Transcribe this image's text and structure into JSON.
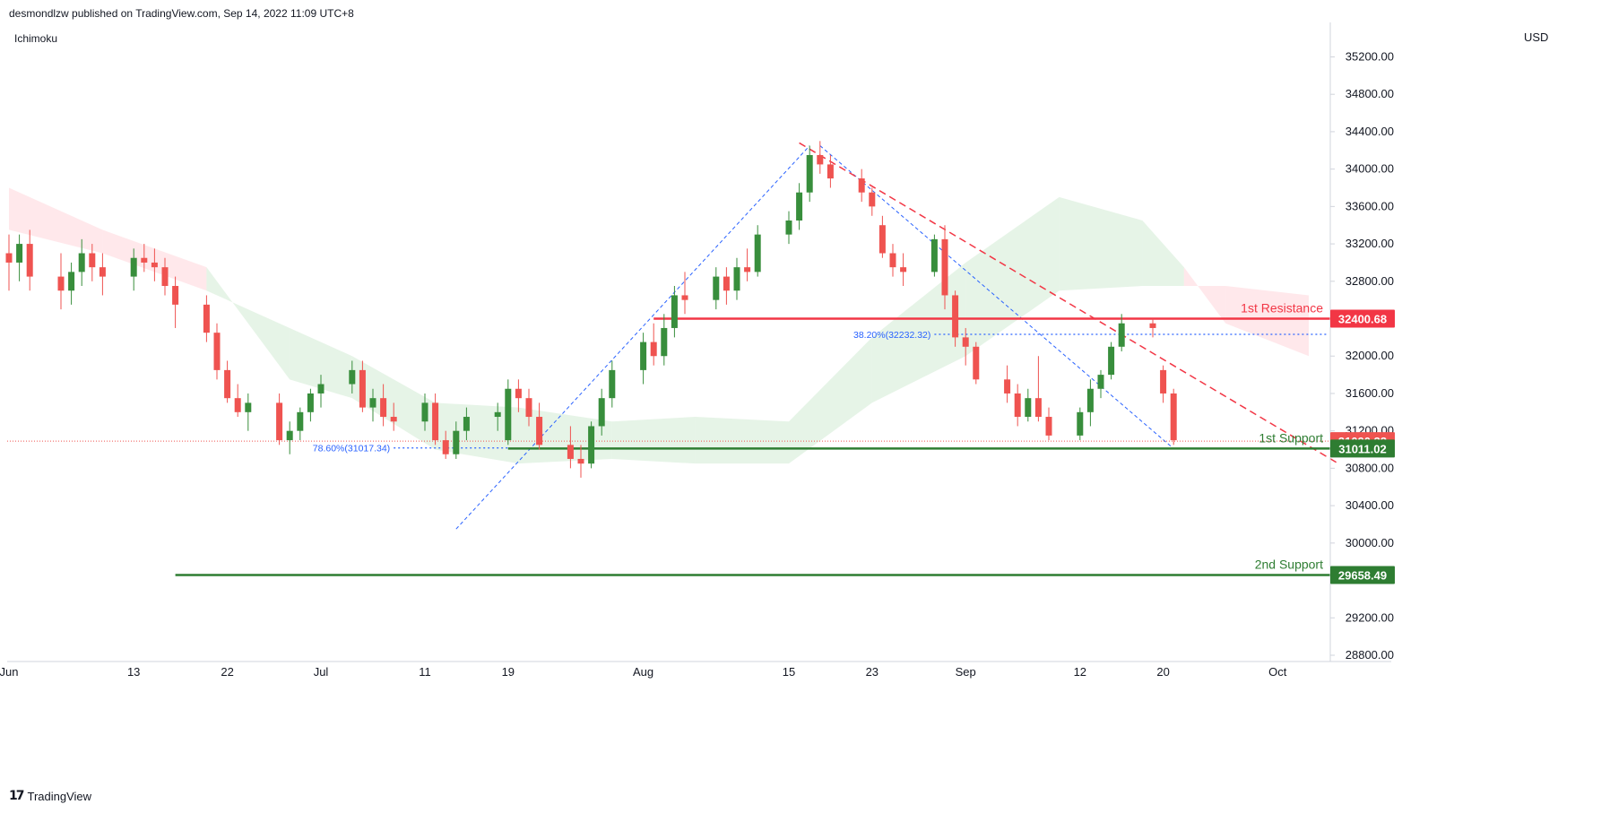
{
  "header": {
    "publisher_text": "desmondlzw published on TradingView.com, Sep 14, 2022 11:09 UTC+8",
    "indicator_label": "Ichimoku",
    "currency": "USD"
  },
  "footer": {
    "brand": "TradingView",
    "logo_glyph": "17"
  },
  "colors": {
    "up": "#388e3c",
    "down": "#ef5350",
    "resistance": "#f23645",
    "support": "#2e7d32",
    "fib": "#2962ff",
    "cloud_bull": "#c8e6c9",
    "cloud_bear": "#ffcdd2"
  },
  "chart_data": {
    "type": "candlestick",
    "title": "",
    "ylim": [
      28500,
      35500
    ],
    "y_ticks": [
      28800,
      29200,
      30000,
      30400,
      30800,
      31200,
      31600,
      32000,
      32400,
      32800,
      33200,
      33600,
      34000,
      34400,
      34800,
      35200
    ],
    "y_tick_labels": [
      "28800.00",
      "29200.00",
      "30000.00",
      "30400.00",
      "30800.00",
      "31200.00",
      "31600.00",
      "32000.00",
      "32400.00",
      "32800.00",
      "33200.00",
      "33600.00",
      "34000.00",
      "34400.00",
      "34800.00",
      "35200.00"
    ],
    "x_tick_labels": [
      {
        "label": "Jun",
        "date": "2022-06-01"
      },
      {
        "label": "13",
        "date": "2022-06-13"
      },
      {
        "label": "22",
        "date": "2022-06-22"
      },
      {
        "label": "Jul",
        "date": "2022-07-01"
      },
      {
        "label": "11",
        "date": "2022-07-11"
      },
      {
        "label": "19",
        "date": "2022-07-19"
      },
      {
        "label": "Aug",
        "date": "2022-08-01"
      },
      {
        "label": "15",
        "date": "2022-08-15"
      },
      {
        "label": "23",
        "date": "2022-08-23"
      },
      {
        "label": "Sep",
        "date": "2022-09-01"
      },
      {
        "label": "12",
        "date": "2022-09-12"
      },
      {
        "label": "20",
        "date": "2022-09-20"
      },
      {
        "label": "Oct",
        "date": "2022-10-01"
      }
    ],
    "candles": [
      {
        "date": "2022-06-01",
        "o": 33100,
        "h": 33300,
        "l": 32700,
        "c": 33000
      },
      {
        "date": "2022-06-02",
        "o": 33000,
        "h": 33300,
        "l": 32800,
        "c": 33200
      },
      {
        "date": "2022-06-03",
        "o": 33200,
        "h": 33350,
        "l": 32700,
        "c": 32850
      },
      {
        "date": "2022-06-06",
        "o": 32850,
        "h": 33100,
        "l": 32500,
        "c": 32700
      },
      {
        "date": "2022-06-07",
        "o": 32700,
        "h": 33000,
        "l": 32550,
        "c": 32900
      },
      {
        "date": "2022-06-08",
        "o": 32900,
        "h": 33250,
        "l": 32750,
        "c": 33100
      },
      {
        "date": "2022-06-09",
        "o": 33100,
        "h": 33200,
        "l": 32800,
        "c": 32950
      },
      {
        "date": "2022-06-10",
        "o": 32950,
        "h": 33100,
        "l": 32650,
        "c": 32850
      },
      {
        "date": "2022-06-13",
        "o": 32850,
        "h": 33150,
        "l": 32700,
        "c": 33050
      },
      {
        "date": "2022-06-14",
        "o": 33050,
        "h": 33200,
        "l": 32900,
        "c": 33000
      },
      {
        "date": "2022-06-15",
        "o": 33000,
        "h": 33150,
        "l": 32800,
        "c": 32950
      },
      {
        "date": "2022-06-16",
        "o": 32950,
        "h": 33050,
        "l": 32650,
        "c": 32750
      },
      {
        "date": "2022-06-17",
        "o": 32750,
        "h": 32850,
        "l": 32300,
        "c": 32550
      },
      {
        "date": "2022-06-20",
        "o": 32550,
        "h": 32650,
        "l": 32150,
        "c": 32250
      },
      {
        "date": "2022-06-21",
        "o": 32250,
        "h": 32350,
        "l": 31750,
        "c": 31850
      },
      {
        "date": "2022-06-22",
        "o": 31850,
        "h": 31950,
        "l": 31500,
        "c": 31550
      },
      {
        "date": "2022-06-23",
        "o": 31550,
        "h": 31700,
        "l": 31350,
        "c": 31400
      },
      {
        "date": "2022-06-24",
        "o": 31400,
        "h": 31600,
        "l": 31200,
        "c": 31500
      },
      {
        "date": "2022-06-27",
        "o": 31500,
        "h": 31600,
        "l": 31050,
        "c": 31100
      },
      {
        "date": "2022-06-28",
        "o": 31100,
        "h": 31300,
        "l": 30950,
        "c": 31200
      },
      {
        "date": "2022-06-29",
        "o": 31200,
        "h": 31450,
        "l": 31100,
        "c": 31400
      },
      {
        "date": "2022-06-30",
        "o": 31400,
        "h": 31650,
        "l": 31300,
        "c": 31600
      },
      {
        "date": "2022-07-01",
        "o": 31600,
        "h": 31800,
        "l": 31450,
        "c": 31700
      },
      {
        "date": "2022-07-04",
        "o": 31700,
        "h": 31950,
        "l": 31600,
        "c": 31850
      },
      {
        "date": "2022-07-05",
        "o": 31850,
        "h": 31950,
        "l": 31400,
        "c": 31450
      },
      {
        "date": "2022-07-06",
        "o": 31450,
        "h": 31650,
        "l": 31300,
        "c": 31550
      },
      {
        "date": "2022-07-07",
        "o": 31550,
        "h": 31700,
        "l": 31250,
        "c": 31350
      },
      {
        "date": "2022-07-08",
        "o": 31350,
        "h": 31500,
        "l": 31200,
        "c": 31300
      },
      {
        "date": "2022-07-11",
        "o": 31300,
        "h": 31600,
        "l": 31200,
        "c": 31500
      },
      {
        "date": "2022-07-12",
        "o": 31500,
        "h": 31600,
        "l": 31050,
        "c": 31100
      },
      {
        "date": "2022-07-13",
        "o": 31100,
        "h": 31200,
        "l": 30900,
        "c": 30950
      },
      {
        "date": "2022-07-14",
        "o": 30950,
        "h": 31300,
        "l": 30900,
        "c": 31200
      },
      {
        "date": "2022-07-15",
        "o": 31200,
        "h": 31450,
        "l": 31100,
        "c": 31350
      },
      {
        "date": "2022-07-18",
        "o": 31350,
        "h": 31500,
        "l": 31200,
        "c": 31400
      },
      {
        "date": "2022-07-19",
        "o": 31100,
        "h": 31750,
        "l": 31050,
        "c": 31650
      },
      {
        "date": "2022-07-20",
        "o": 31650,
        "h": 31750,
        "l": 31400,
        "c": 31550
      },
      {
        "date": "2022-07-21",
        "o": 31550,
        "h": 31650,
        "l": 31250,
        "c": 31350
      },
      {
        "date": "2022-07-22",
        "o": 31350,
        "h": 31500,
        "l": 31000,
        "c": 31050
      },
      {
        "date": "2022-07-25",
        "o": 31050,
        "h": 31250,
        "l": 30800,
        "c": 30900
      },
      {
        "date": "2022-07-26",
        "o": 30900,
        "h": 31050,
        "l": 30700,
        "c": 30850
      },
      {
        "date": "2022-07-27",
        "o": 30850,
        "h": 31300,
        "l": 30800,
        "c": 31250
      },
      {
        "date": "2022-07-28",
        "o": 31250,
        "h": 31650,
        "l": 31150,
        "c": 31550
      },
      {
        "date": "2022-07-29",
        "o": 31550,
        "h": 31950,
        "l": 31450,
        "c": 31850
      },
      {
        "date": "2022-08-01",
        "o": 31850,
        "h": 32250,
        "l": 31700,
        "c": 32150
      },
      {
        "date": "2022-08-02",
        "o": 32150,
        "h": 32350,
        "l": 31900,
        "c": 32000
      },
      {
        "date": "2022-08-03",
        "o": 32000,
        "h": 32450,
        "l": 31900,
        "c": 32300
      },
      {
        "date": "2022-08-04",
        "o": 32300,
        "h": 32750,
        "l": 32200,
        "c": 32650
      },
      {
        "date": "2022-08-05",
        "o": 32650,
        "h": 32900,
        "l": 32450,
        "c": 32600
      },
      {
        "date": "2022-08-08",
        "o": 32600,
        "h": 32950,
        "l": 32500,
        "c": 32850
      },
      {
        "date": "2022-08-09",
        "o": 32850,
        "h": 32950,
        "l": 32550,
        "c": 32700
      },
      {
        "date": "2022-08-10",
        "o": 32700,
        "h": 33050,
        "l": 32600,
        "c": 32950
      },
      {
        "date": "2022-08-11",
        "o": 32950,
        "h": 33150,
        "l": 32800,
        "c": 32900
      },
      {
        "date": "2022-08-12",
        "o": 32900,
        "h": 33400,
        "l": 32850,
        "c": 33300
      },
      {
        "date": "2022-08-15",
        "o": 33300,
        "h": 33550,
        "l": 33200,
        "c": 33450
      },
      {
        "date": "2022-08-16",
        "o": 33450,
        "h": 33850,
        "l": 33350,
        "c": 33750
      },
      {
        "date": "2022-08-17",
        "o": 33750,
        "h": 34250,
        "l": 33650,
        "c": 34150
      },
      {
        "date": "2022-08-18",
        "o": 34150,
        "h": 34300,
        "l": 33950,
        "c": 34050
      },
      {
        "date": "2022-08-19",
        "o": 34050,
        "h": 34150,
        "l": 33800,
        "c": 33900
      },
      {
        "date": "2022-08-22",
        "o": 33900,
        "h": 34000,
        "l": 33650,
        "c": 33750
      },
      {
        "date": "2022-08-23",
        "o": 33750,
        "h": 33800,
        "l": 33500,
        "c": 33600
      },
      {
        "date": "2022-08-24",
        "o": 33400,
        "h": 33500,
        "l": 33050,
        "c": 33100
      },
      {
        "date": "2022-08-25",
        "o": 33100,
        "h": 33200,
        "l": 32850,
        "c": 32950
      },
      {
        "date": "2022-08-26",
        "o": 32950,
        "h": 33100,
        "l": 32750,
        "c": 32900
      },
      {
        "date": "2022-08-29",
        "o": 32900,
        "h": 33300,
        "l": 32850,
        "c": 33250
      },
      {
        "date": "2022-08-30",
        "o": 33250,
        "h": 33400,
        "l": 32500,
        "c": 32650
      },
      {
        "date": "2022-08-31",
        "o": 32650,
        "h": 32700,
        "l": 32100,
        "c": 32200
      },
      {
        "date": "2022-09-01",
        "o": 32200,
        "h": 32300,
        "l": 31900,
        "c": 32100
      },
      {
        "date": "2022-09-02",
        "o": 32100,
        "h": 32150,
        "l": 31700,
        "c": 31750
      },
      {
        "date": "2022-09-05",
        "o": 31750,
        "h": 31900,
        "l": 31500,
        "c": 31600
      },
      {
        "date": "2022-09-06",
        "o": 31600,
        "h": 31700,
        "l": 31250,
        "c": 31350
      },
      {
        "date": "2022-09-07",
        "o": 31350,
        "h": 31650,
        "l": 31300,
        "c": 31550
      },
      {
        "date": "2022-09-08",
        "o": 31550,
        "h": 32000,
        "l": 31300,
        "c": 31350
      },
      {
        "date": "2022-09-09",
        "o": 31350,
        "h": 31450,
        "l": 31100,
        "c": 31150
      },
      {
        "date": "2022-09-12",
        "o": 31150,
        "h": 31450,
        "l": 31100,
        "c": 31400
      },
      {
        "date": "2022-09-13",
        "o": 31400,
        "h": 31750,
        "l": 31250,
        "c": 31650
      },
      {
        "date": "2022-09-14",
        "o": 31650,
        "h": 31850,
        "l": 31550,
        "c": 31800
      },
      {
        "date": "2022-09-15",
        "o": 31800,
        "h": 32150,
        "l": 31750,
        "c": 32100
      },
      {
        "date": "2022-09-16",
        "o": 32100,
        "h": 32450,
        "l": 32050,
        "c": 32350
      },
      {
        "date": "2022-09-19",
        "o": 32350,
        "h": 32400,
        "l": 32200,
        "c": 32300
      },
      {
        "date": "2022-09-20",
        "o": 31850,
        "h": 31900,
        "l": 31500,
        "c": 31600
      },
      {
        "date": "2022-09-21",
        "o": 31600,
        "h": 31650,
        "l": 31050,
        "c": 31100
      }
    ],
    "cloud": [
      {
        "date": "2022-06-01",
        "a": 33350,
        "b": 33800
      },
      {
        "date": "2022-06-10",
        "a": 33100,
        "b": 33350
      },
      {
        "date": "2022-06-20",
        "a": 32700,
        "b": 32950
      },
      {
        "date": "2022-06-28",
        "a": 32300,
        "b": 31750
      },
      {
        "date": "2022-07-04",
        "a": 32000,
        "b": 31550
      },
      {
        "date": "2022-07-12",
        "a": 31500,
        "b": 31000
      },
      {
        "date": "2022-07-20",
        "a": 31450,
        "b": 30850
      },
      {
        "date": "2022-07-29",
        "a": 31300,
        "b": 30900
      },
      {
        "date": "2022-08-06",
        "a": 31350,
        "b": 30850
      },
      {
        "date": "2022-08-15",
        "a": 31300,
        "b": 30850
      },
      {
        "date": "2022-08-23",
        "a": 32200,
        "b": 31500
      },
      {
        "date": "2022-09-01",
        "a": 33000,
        "b": 32000
      },
      {
        "date": "2022-09-10",
        "a": 33700,
        "b": 32700
      },
      {
        "date": "2022-09-18",
        "a": 33450,
        "b": 32750
      },
      {
        "date": "2022-09-22",
        "a": 32950,
        "b": 32750
      },
      {
        "date": "2022-09-26",
        "a": 32350,
        "b": 32750
      },
      {
        "date": "2022-10-04",
        "a": 32000,
        "b": 32650
      }
    ],
    "resistance_line": {
      "label": "1st Resistance",
      "value": 32400.68,
      "value_label": "32400.68",
      "start": "2022-08-02"
    },
    "support_lines": [
      {
        "label": "1st Support",
        "value": 31011.02,
        "value_label": "31011.02",
        "start": "2022-07-19"
      },
      {
        "label": "2nd Support",
        "value": 29658.49,
        "value_label": "29658.49",
        "start": "2022-06-17"
      }
    ],
    "current_price": {
      "value": 31090.33,
      "value_label": "31090.33"
    },
    "fib_levels": [
      {
        "label": "38.20%(32232.32)",
        "value": 32232.32,
        "start": "2022-08-29"
      },
      {
        "label": "78.60%(31017.34)",
        "value": 31017.34,
        "start": "2022-07-08"
      }
    ],
    "fib_swings": [
      {
        "from": {
          "date": "2022-07-14",
          "value": 30150
        },
        "to": {
          "date": "2022-08-17",
          "value": 34250
        }
      },
      {
        "from": {
          "date": "2022-08-18",
          "value": 34250
        },
        "to": {
          "date": "2022-09-21",
          "value": 31010
        }
      }
    ],
    "trendline": {
      "from": {
        "date": "2022-08-16",
        "value": 34280
      },
      "to": {
        "date": "2022-10-07",
        "value": 30840
      }
    }
  }
}
